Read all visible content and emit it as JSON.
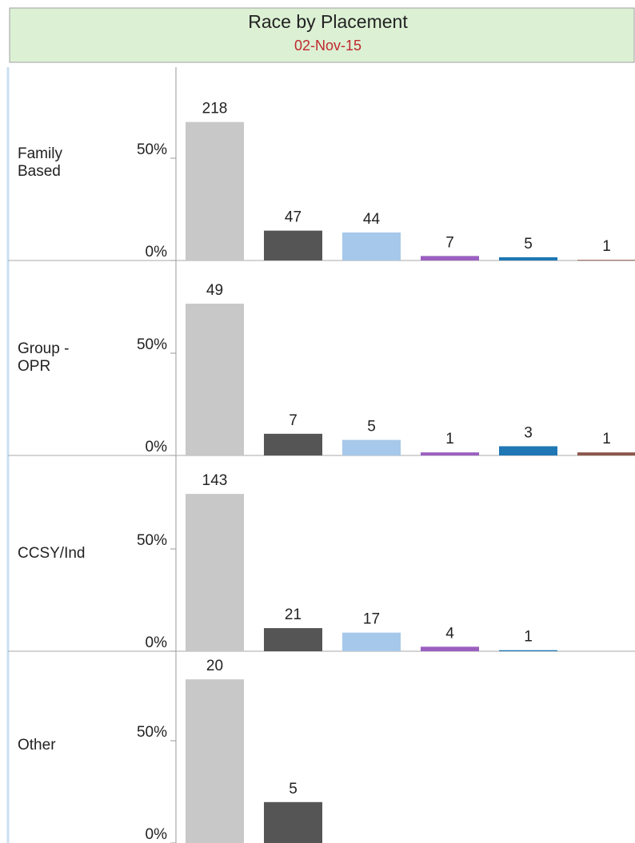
{
  "header": {
    "title": "Race by Placement",
    "subtitle": "02-Nov-15"
  },
  "chart_data": [
    {
      "type": "bar",
      "row_label": "Family Based",
      "categories": [
        null,
        null,
        null,
        null,
        null,
        null
      ],
      "values": [
        67.7,
        14.6,
        13.7,
        2.2,
        1.6,
        0.3
      ],
      "value_labels": [
        "218",
        "47",
        "44",
        "7",
        "5",
        "1"
      ],
      "colors": [
        "#c8c8c8",
        "#555555",
        "#a6c8ea",
        "#9b5fc0",
        "#1f77b4",
        "#8c564b"
      ],
      "ylim": [
        0,
        95
      ],
      "yticks": [
        {
          "value": 0,
          "label": "0%"
        },
        {
          "value": 50,
          "label": "50%"
        }
      ]
    },
    {
      "type": "bar",
      "row_label": "Group - OPR",
      "categories": [
        null,
        null,
        null,
        null,
        null,
        null
      ],
      "values": [
        74.2,
        10.6,
        7.6,
        1.5,
        4.5,
        1.5
      ],
      "value_labels": [
        "49",
        "7",
        "5",
        "1",
        "3",
        "1"
      ],
      "colors": [
        "#c8c8c8",
        "#555555",
        "#a6c8ea",
        "#9b5fc0",
        "#1f77b4",
        "#8c564b"
      ],
      "ylim": [
        0,
        95
      ],
      "yticks": [
        {
          "value": 0,
          "label": "0%"
        },
        {
          "value": 50,
          "label": "50%"
        }
      ]
    },
    {
      "type": "bar",
      "row_label": "CCSY/Ind",
      "categories": [
        null,
        null,
        null,
        null,
        null
      ],
      "values": [
        76.9,
        11.3,
        9.1,
        2.2,
        0.5
      ],
      "value_labels": [
        "143",
        "21",
        "17",
        "4",
        "1"
      ],
      "colors": [
        "#c8c8c8",
        "#555555",
        "#a6c8ea",
        "#9b5fc0",
        "#1f77b4"
      ],
      "ylim": [
        0,
        95
      ],
      "yticks": [
        {
          "value": 0,
          "label": "0%"
        },
        {
          "value": 50,
          "label": "50%"
        }
      ]
    },
    {
      "type": "bar",
      "row_label": "Other",
      "categories": [
        null,
        null
      ],
      "values": [
        80,
        20
      ],
      "value_labels": [
        "20",
        "5"
      ],
      "colors": [
        "#c8c8c8",
        "#555555"
      ],
      "ylim": [
        0,
        95
      ],
      "yticks": [
        {
          "value": 0,
          "label": "0%"
        },
        {
          "value": 50,
          "label": "50%"
        }
      ]
    }
  ]
}
